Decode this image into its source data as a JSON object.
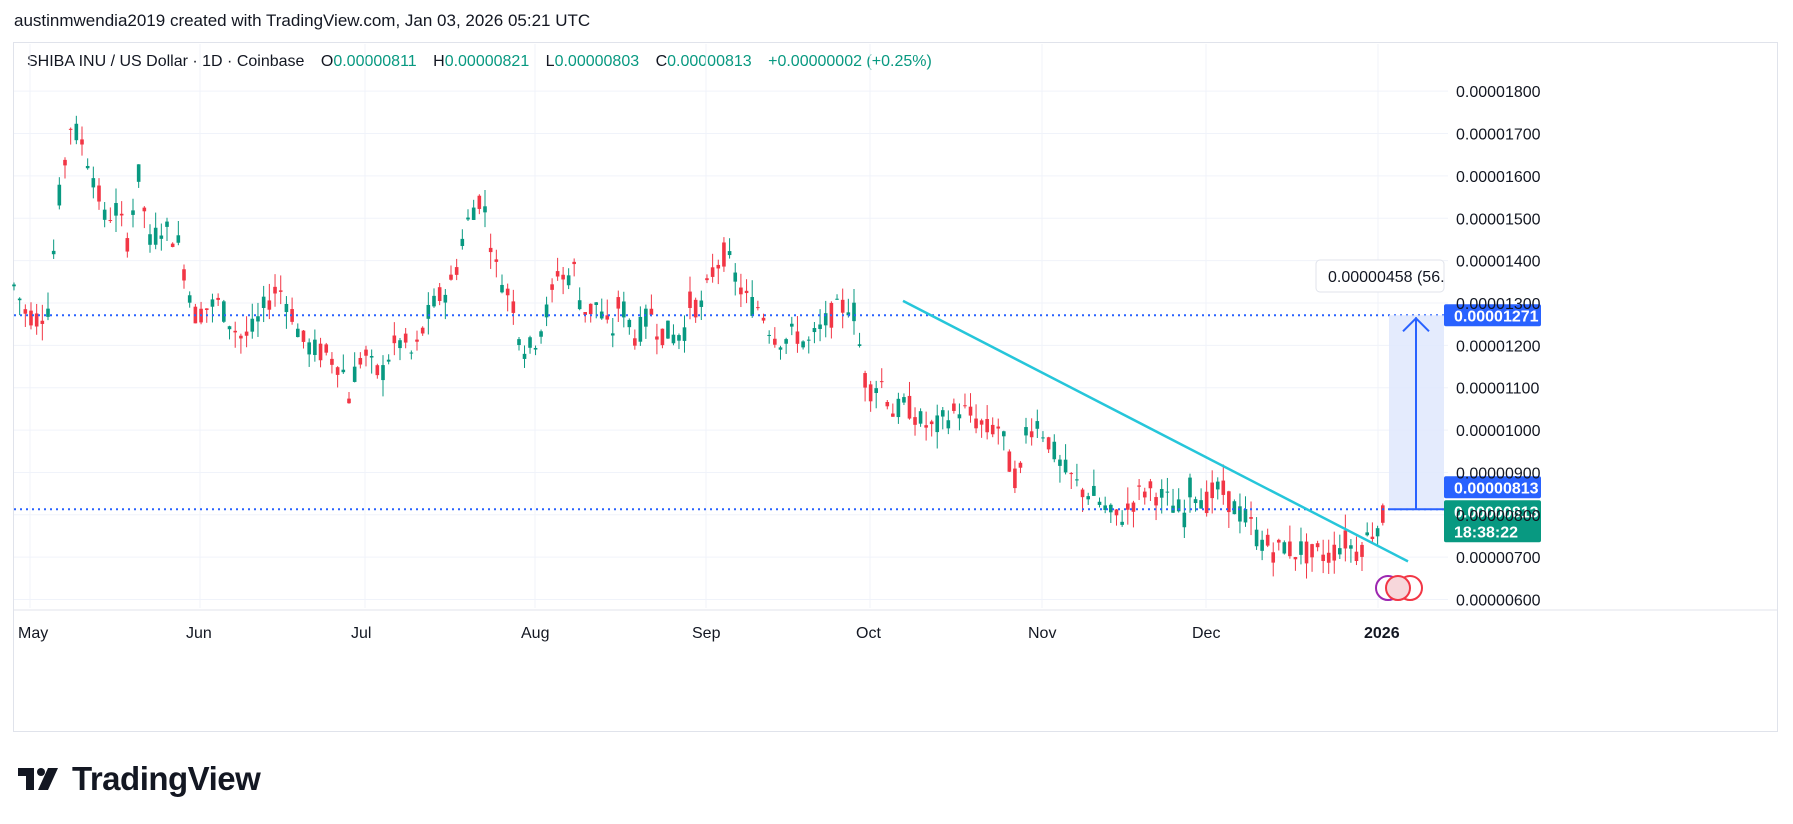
{
  "header": {
    "attribution": "austinmwendia2019 created with TradingView.com, Jan 03, 2026 05:21 UTC"
  },
  "symbol": {
    "name": "SHIBA INU / US Dollar · 1D · Coinbase",
    "o_label": "O",
    "o_value": "0.00000811",
    "h_label": "H",
    "h_value": "0.00000821",
    "l_label": "L",
    "l_value": "0.00000803",
    "c_label": "C",
    "c_value": "0.00000813",
    "change": "+0.00000002 (+0.25%)"
  },
  "brand": {
    "name": "TradingView"
  },
  "colors": {
    "up": "#089981",
    "down": "#f23645",
    "trendline": "#26c6da",
    "hline": "#2962ff",
    "measure_fill": "#dfe7fd",
    "measure_line": "#2962ff",
    "grid": "#f0f3fa",
    "axis_text": "#131722"
  },
  "chart_data": {
    "type": "candlestick",
    "x_labels": [
      "May",
      "Jun",
      "Jul",
      "Aug",
      "Sep",
      "Oct",
      "Nov",
      "Dec",
      "2026"
    ],
    "y_ticks": [
      "0.00001800",
      "0.00001700",
      "0.00001600",
      "0.00001500",
      "0.00001400",
      "0.00001300",
      "0.00001200",
      "0.00001100",
      "0.00001000",
      "0.00000900",
      "0.00000800",
      "0.00000700",
      "0.00000600"
    ],
    "ylim": [
      5.8e-06,
      1.85e-05
    ],
    "price_scale_unit": 1e-08,
    "monthly_path_1e8": [
      [
        1340,
        1280,
        1265,
        1290,
        1550,
        1720,
        1680,
        1600,
        1500,
        1520,
        1450,
        1600,
        1440,
        1480,
        1460,
        1420
      ],
      [
        1380,
        1270,
        1290,
        1300,
        1250,
        1215,
        1240,
        1300,
        1340,
        1290,
        1210,
        1190,
        1180,
        1160,
        1120
      ],
      [
        1080,
        1160,
        1180,
        1140,
        1130,
        1180,
        1210,
        1200,
        1170,
        1230,
        1280,
        1310,
        1330,
        1360,
        1450,
        1510,
        1550,
        1510,
        1390,
        1350,
        1310,
        1270
      ],
      [
        1230,
        1180,
        1210,
        1250,
        1300,
        1380,
        1350,
        1390,
        1290,
        1280,
        1300,
        1250,
        1230,
        1310,
        1260,
        1220,
        1250,
        1280,
        1230,
        1230,
        1220,
        1230,
        1260
      ],
      [
        1300,
        1290,
        1380,
        1420,
        1350,
        1300,
        1290,
        1230,
        1210,
        1230,
        1200,
        1230,
        1270,
        1290,
        1300
      ],
      [
        1280,
        1090,
        1120,
        1040,
        1060,
        1020,
        1000,
        1030,
        1050,
        1030,
        1000,
        1010,
        890,
        900
      ],
      [
        1000,
        1020,
        980,
        920,
        890,
        860,
        850,
        820,
        790,
        800,
        840,
        860,
        850,
        830,
        810,
        790
      ],
      [
        860,
        850,
        830,
        860,
        850,
        820,
        800,
        780,
        740,
        730,
        710,
        730,
        710,
        720,
        700,
        710,
        700,
        720,
        740,
        720,
        700
      ],
      [
        730,
        810
      ]
    ],
    "last": {
      "price": "0.00000813",
      "countdown": "18:38:22",
      "measure_top": "0.00001271",
      "measure_bottom": "0.00000813",
      "measure_label": "0.00000458 (56."
    },
    "horizontal_levels": [
      1.271e-05,
      8.13e-06
    ],
    "trendline": {
      "start": [
        "Oct",
        1.305e-05
      ],
      "end": [
        "2026",
        6.9e-06
      ]
    },
    "grid": true
  }
}
